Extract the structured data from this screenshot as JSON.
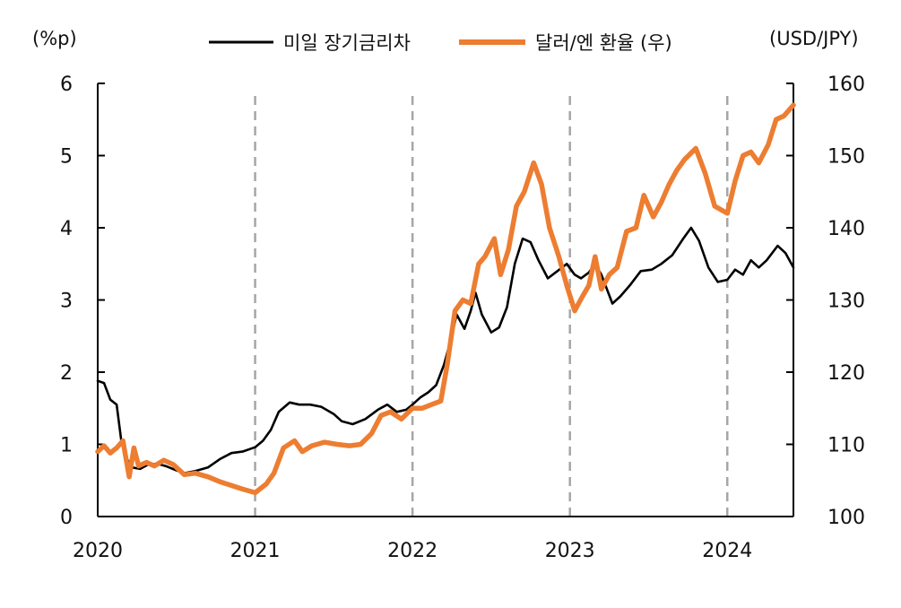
{
  "chart_data": {
    "type": "line",
    "left_axis": {
      "unit_label": "(%p)",
      "ylim": [
        0,
        6
      ],
      "ticks": [
        "0",
        "1",
        "2",
        "3",
        "4",
        "5",
        "6"
      ]
    },
    "right_axis": {
      "unit_label": "(USD/JPY)",
      "ylim": [
        100,
        160
      ],
      "ticks": [
        "100",
        "110",
        "120",
        "130",
        "140",
        "150",
        "160"
      ]
    },
    "x_axis": {
      "xlim": [
        2020.0,
        2024.42
      ],
      "ticks": [
        "2020",
        "2021",
        "2022",
        "2023",
        "2024"
      ],
      "year_gridlines": [
        2021,
        2022,
        2023,
        2024
      ]
    },
    "legend": {
      "placement": "top-center"
    },
    "series": [
      {
        "name": "미일 장기금리차",
        "axis": "left",
        "color": "#000000",
        "points": [
          [
            2020.0,
            1.88
          ],
          [
            2020.04,
            1.85
          ],
          [
            2020.08,
            1.62
          ],
          [
            2020.12,
            1.55
          ],
          [
            2020.15,
            1.05
          ],
          [
            2020.18,
            0.82
          ],
          [
            2020.22,
            0.68
          ],
          [
            2020.27,
            0.66
          ],
          [
            2020.32,
            0.72
          ],
          [
            2020.38,
            0.73
          ],
          [
            2020.43,
            0.7
          ],
          [
            2020.5,
            0.64
          ],
          [
            2020.55,
            0.6
          ],
          [
            2020.62,
            0.63
          ],
          [
            2020.7,
            0.68
          ],
          [
            2020.78,
            0.8
          ],
          [
            2020.85,
            0.88
          ],
          [
            2020.92,
            0.9
          ],
          [
            2021.0,
            0.96
          ],
          [
            2021.05,
            1.05
          ],
          [
            2021.1,
            1.2
          ],
          [
            2021.15,
            1.45
          ],
          [
            2021.22,
            1.58
          ],
          [
            2021.28,
            1.55
          ],
          [
            2021.35,
            1.55
          ],
          [
            2021.42,
            1.52
          ],
          [
            2021.5,
            1.42
          ],
          [
            2021.55,
            1.32
          ],
          [
            2021.62,
            1.28
          ],
          [
            2021.7,
            1.35
          ],
          [
            2021.78,
            1.48
          ],
          [
            2021.84,
            1.55
          ],
          [
            2021.9,
            1.45
          ],
          [
            2021.96,
            1.48
          ],
          [
            2022.0,
            1.55
          ],
          [
            2022.05,
            1.65
          ],
          [
            2022.1,
            1.72
          ],
          [
            2022.15,
            1.82
          ],
          [
            2022.2,
            2.1
          ],
          [
            2022.25,
            2.5
          ],
          [
            2022.28,
            2.8
          ],
          [
            2022.33,
            2.6
          ],
          [
            2022.37,
            2.85
          ],
          [
            2022.4,
            3.1
          ],
          [
            2022.44,
            2.8
          ],
          [
            2022.5,
            2.55
          ],
          [
            2022.55,
            2.62
          ],
          [
            2022.6,
            2.9
          ],
          [
            2022.65,
            3.5
          ],
          [
            2022.7,
            3.85
          ],
          [
            2022.75,
            3.8
          ],
          [
            2022.8,
            3.55
          ],
          [
            2022.86,
            3.3
          ],
          [
            2022.92,
            3.4
          ],
          [
            2022.98,
            3.5
          ],
          [
            2023.03,
            3.35
          ],
          [
            2023.07,
            3.3
          ],
          [
            2023.12,
            3.38
          ],
          [
            2023.16,
            3.5
          ],
          [
            2023.2,
            3.35
          ],
          [
            2023.27,
            2.95
          ],
          [
            2023.32,
            3.05
          ],
          [
            2023.38,
            3.2
          ],
          [
            2023.45,
            3.4
          ],
          [
            2023.52,
            3.42
          ],
          [
            2023.58,
            3.5
          ],
          [
            2023.65,
            3.62
          ],
          [
            2023.72,
            3.85
          ],
          [
            2023.77,
            4.0
          ],
          [
            2023.82,
            3.82
          ],
          [
            2023.88,
            3.45
          ],
          [
            2023.94,
            3.25
          ],
          [
            2024.0,
            3.28
          ],
          [
            2024.05,
            3.42
          ],
          [
            2024.1,
            3.35
          ],
          [
            2024.15,
            3.55
          ],
          [
            2024.2,
            3.45
          ],
          [
            2024.25,
            3.55
          ],
          [
            2024.32,
            3.75
          ],
          [
            2024.37,
            3.65
          ],
          [
            2024.42,
            3.45
          ]
        ]
      },
      {
        "name": "달러/엔 환율 (우)",
        "axis": "right",
        "color": "#ED7D31",
        "points": [
          [
            2020.0,
            109.0
          ],
          [
            2020.04,
            109.8
          ],
          [
            2020.08,
            108.8
          ],
          [
            2020.12,
            109.5
          ],
          [
            2020.16,
            110.5
          ],
          [
            2020.2,
            105.5
          ],
          [
            2020.23,
            109.5
          ],
          [
            2020.26,
            107.0
          ],
          [
            2020.31,
            107.5
          ],
          [
            2020.36,
            107.0
          ],
          [
            2020.42,
            107.8
          ],
          [
            2020.48,
            107.2
          ],
          [
            2020.55,
            105.8
          ],
          [
            2020.62,
            106.0
          ],
          [
            2020.7,
            105.5
          ],
          [
            2020.78,
            104.8
          ],
          [
            2020.85,
            104.3
          ],
          [
            2020.92,
            103.8
          ],
          [
            2021.0,
            103.3
          ],
          [
            2021.07,
            104.5
          ],
          [
            2021.12,
            106.0
          ],
          [
            2021.18,
            109.5
          ],
          [
            2021.25,
            110.5
          ],
          [
            2021.3,
            109.0
          ],
          [
            2021.36,
            109.8
          ],
          [
            2021.44,
            110.3
          ],
          [
            2021.52,
            110.0
          ],
          [
            2021.6,
            109.8
          ],
          [
            2021.67,
            110.0
          ],
          [
            2021.74,
            111.5
          ],
          [
            2021.8,
            114.0
          ],
          [
            2021.86,
            114.5
          ],
          [
            2021.93,
            113.5
          ],
          [
            2022.0,
            115.0
          ],
          [
            2022.06,
            115.0
          ],
          [
            2022.12,
            115.5
          ],
          [
            2022.18,
            116.0
          ],
          [
            2022.22,
            121.0
          ],
          [
            2022.27,
            128.5
          ],
          [
            2022.32,
            130.0
          ],
          [
            2022.37,
            129.5
          ],
          [
            2022.42,
            135.0
          ],
          [
            2022.46,
            136.0
          ],
          [
            2022.52,
            138.5
          ],
          [
            2022.56,
            133.5
          ],
          [
            2022.61,
            137.0
          ],
          [
            2022.66,
            143.0
          ],
          [
            2022.71,
            145.0
          ],
          [
            2022.77,
            149.0
          ],
          [
            2022.82,
            146.0
          ],
          [
            2022.87,
            140.0
          ],
          [
            2022.93,
            136.0
          ],
          [
            2022.98,
            132.0
          ],
          [
            2023.03,
            128.5
          ],
          [
            2023.08,
            130.5
          ],
          [
            2023.12,
            132.0
          ],
          [
            2023.16,
            136.0
          ],
          [
            2023.2,
            131.5
          ],
          [
            2023.25,
            133.5
          ],
          [
            2023.3,
            134.5
          ],
          [
            2023.36,
            139.5
          ],
          [
            2023.42,
            140.0
          ],
          [
            2023.47,
            144.5
          ],
          [
            2023.53,
            141.5
          ],
          [
            2023.58,
            143.5
          ],
          [
            2023.63,
            146.0
          ],
          [
            2023.68,
            148.0
          ],
          [
            2023.73,
            149.5
          ],
          [
            2023.8,
            151.0
          ],
          [
            2023.86,
            147.5
          ],
          [
            2023.92,
            143.0
          ],
          [
            2024.0,
            142.0
          ],
          [
            2024.05,
            146.5
          ],
          [
            2024.1,
            150.0
          ],
          [
            2024.15,
            150.5
          ],
          [
            2024.2,
            149.0
          ],
          [
            2024.26,
            151.5
          ],
          [
            2024.31,
            155.0
          ],
          [
            2024.36,
            155.5
          ],
          [
            2024.42,
            157.0
          ]
        ]
      }
    ]
  }
}
